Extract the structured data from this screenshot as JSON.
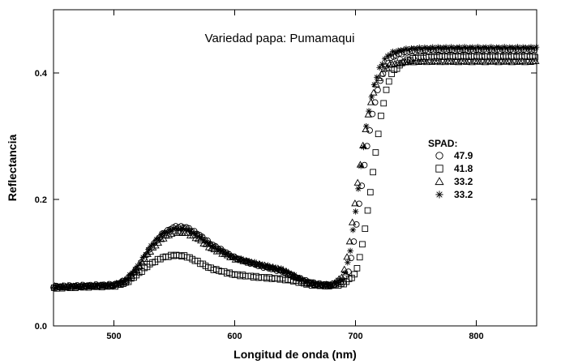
{
  "chart_data": {
    "type": "scatter",
    "title": "Variedad papa: Pumamaqui",
    "xlabel": "Longitud de onda (nm)",
    "ylabel": "Reflectancia",
    "xlim": [
      450,
      850
    ],
    "ylim": [
      0.0,
      0.5
    ],
    "x_ticks": [
      500,
      600,
      700,
      800
    ],
    "x_tick_labels": [
      "500",
      "600",
      "700",
      "800"
    ],
    "y_ticks": [
      0.0,
      0.2,
      0.4
    ],
    "y_tick_labels": [
      "0.0",
      "0.2",
      "0.4"
    ],
    "grid": false,
    "legend": {
      "title": "SPAD:",
      "placement": "right",
      "entries": [
        "47.9",
        "41.8",
        "33.2",
        "33.2"
      ]
    },
    "series": [
      {
        "name": "47.9",
        "marker": "circle",
        "points": [
          [
            450,
            0.062
          ],
          [
            480,
            0.064
          ],
          [
            500,
            0.065
          ],
          [
            510,
            0.072
          ],
          [
            520,
            0.092
          ],
          [
            530,
            0.122
          ],
          [
            540,
            0.145
          ],
          [
            550,
            0.157
          ],
          [
            560,
            0.156
          ],
          [
            570,
            0.145
          ],
          [
            580,
            0.13
          ],
          [
            600,
            0.108
          ],
          [
            620,
            0.095
          ],
          [
            640,
            0.086
          ],
          [
            650,
            0.078
          ],
          [
            660,
            0.07
          ],
          [
            670,
            0.066
          ],
          [
            680,
            0.065
          ],
          [
            690,
            0.07
          ],
          [
            695,
            0.09
          ],
          [
            700,
            0.15
          ],
          [
            705,
            0.22
          ],
          [
            710,
            0.29
          ],
          [
            715,
            0.345
          ],
          [
            720,
            0.385
          ],
          [
            725,
            0.41
          ],
          [
            730,
            0.425
          ],
          [
            740,
            0.432
          ],
          [
            750,
            0.435
          ],
          [
            770,
            0.436
          ],
          [
            800,
            0.436
          ],
          [
            850,
            0.436
          ]
        ]
      },
      {
        "name": "41.8",
        "marker": "square",
        "points": [
          [
            450,
            0.06
          ],
          [
            480,
            0.062
          ],
          [
            500,
            0.063
          ],
          [
            510,
            0.068
          ],
          [
            520,
            0.082
          ],
          [
            530,
            0.098
          ],
          [
            540,
            0.108
          ],
          [
            550,
            0.112
          ],
          [
            560,
            0.11
          ],
          [
            570,
            0.101
          ],
          [
            580,
            0.091
          ],
          [
            600,
            0.081
          ],
          [
            620,
            0.077
          ],
          [
            640,
            0.074
          ],
          [
            650,
            0.071
          ],
          [
            660,
            0.066
          ],
          [
            670,
            0.064
          ],
          [
            680,
            0.064
          ],
          [
            690,
            0.066
          ],
          [
            700,
            0.082
          ],
          [
            705,
            0.12
          ],
          [
            710,
            0.18
          ],
          [
            715,
            0.25
          ],
          [
            720,
            0.32
          ],
          [
            725,
            0.37
          ],
          [
            730,
            0.4
          ],
          [
            740,
            0.418
          ],
          [
            750,
            0.424
          ],
          [
            770,
            0.426
          ],
          [
            800,
            0.426
          ],
          [
            850,
            0.426
          ]
        ]
      },
      {
        "name": "33.2",
        "marker": "triangle",
        "points": [
          [
            450,
            0.062
          ],
          [
            480,
            0.063
          ],
          [
            500,
            0.064
          ],
          [
            510,
            0.07
          ],
          [
            520,
            0.09
          ],
          [
            530,
            0.118
          ],
          [
            540,
            0.138
          ],
          [
            550,
            0.148
          ],
          [
            560,
            0.147
          ],
          [
            570,
            0.137
          ],
          [
            580,
            0.123
          ],
          [
            600,
            0.106
          ],
          [
            620,
            0.097
          ],
          [
            640,
            0.088
          ],
          [
            650,
            0.077
          ],
          [
            660,
            0.068
          ],
          [
            670,
            0.064
          ],
          [
            680,
            0.063
          ],
          [
            690,
            0.08
          ],
          [
            695,
            0.13
          ],
          [
            700,
            0.2
          ],
          [
            705,
            0.27
          ],
          [
            710,
            0.33
          ],
          [
            715,
            0.37
          ],
          [
            720,
            0.395
          ],
          [
            725,
            0.408
          ],
          [
            730,
            0.414
          ],
          [
            740,
            0.417
          ],
          [
            750,
            0.418
          ],
          [
            770,
            0.418
          ],
          [
            800,
            0.418
          ],
          [
            850,
            0.418
          ]
        ]
      },
      {
        "name": "33.2",
        "marker": "asterisk",
        "points": [
          [
            450,
            0.061
          ],
          [
            480,
            0.063
          ],
          [
            500,
            0.065
          ],
          [
            510,
            0.073
          ],
          [
            520,
            0.095
          ],
          [
            530,
            0.125
          ],
          [
            540,
            0.146
          ],
          [
            550,
            0.154
          ],
          [
            560,
            0.153
          ],
          [
            570,
            0.143
          ],
          [
            580,
            0.128
          ],
          [
            600,
            0.108
          ],
          [
            620,
            0.098
          ],
          [
            640,
            0.089
          ],
          [
            650,
            0.079
          ],
          [
            660,
            0.07
          ],
          [
            670,
            0.066
          ],
          [
            680,
            0.065
          ],
          [
            690,
            0.075
          ],
          [
            695,
            0.11
          ],
          [
            700,
            0.18
          ],
          [
            705,
            0.26
          ],
          [
            710,
            0.33
          ],
          [
            715,
            0.378
          ],
          [
            720,
            0.408
          ],
          [
            725,
            0.424
          ],
          [
            730,
            0.432
          ],
          [
            740,
            0.437
          ],
          [
            750,
            0.439
          ],
          [
            770,
            0.44
          ],
          [
            800,
            0.44
          ],
          [
            850,
            0.44
          ]
        ]
      }
    ]
  }
}
